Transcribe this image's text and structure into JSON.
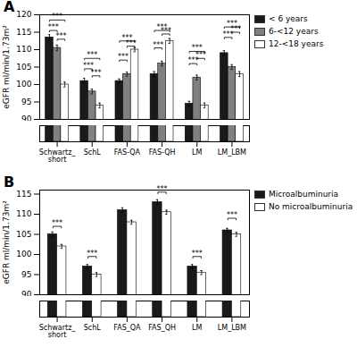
{
  "chart_data": [
    {
      "type": "bar",
      "title": "A",
      "categories": [
        "Schwartz_\nshort",
        "SchL",
        "FAS-QA",
        "FAS-QH",
        "LM",
        "LM_LBM"
      ],
      "series": [
        {
          "name": "< 6 years",
          "color": "#1a1a1a",
          "values": [
            113.5,
            101.0,
            101.0,
            103.0,
            94.5,
            109.0
          ],
          "errors": [
            0.8,
            0.8,
            0.6,
            0.7,
            0.7,
            0.7
          ]
        },
        {
          "name": "6-<12 years",
          "color": "#808080",
          "values": [
            110.5,
            98.0,
            103.0,
            106.0,
            102.0,
            105.0
          ],
          "errors": [
            0.8,
            0.7,
            0.6,
            0.7,
            0.7,
            0.7
          ]
        },
        {
          "name": "12-<18 years",
          "color": "#ffffff",
          "values": [
            100.0,
            94.0,
            110.0,
            112.5,
            94.0,
            103.0
          ],
          "errors": [
            0.7,
            0.7,
            0.6,
            0.7,
            0.7,
            0.7
          ]
        }
      ],
      "ylabel": "eGFR ml/min/1.73m²",
      "ylim": [
        90,
        120
      ],
      "yticks": [
        90,
        95,
        100,
        105,
        110,
        115,
        120
      ],
      "ylim_lower": [
        0,
        8
      ],
      "legend": "upper right",
      "annotations": [
        {
          "text": "***",
          "category": "Schwartz_\nshort",
          "from": "< 6 years",
          "to": "6-<12 years",
          "y": 115.5
        },
        {
          "text": "***",
          "category": "Schwartz_\nshort",
          "from": "6-<12 years",
          "to": "12-<18 years",
          "y": 113.0
        },
        {
          "text": "***",
          "category": "Schwartz_\nshort",
          "from": "< 6 years",
          "to": "12-<18 years",
          "y": 118.5
        },
        {
          "text": "***",
          "category": "SchL",
          "from": "< 6 years",
          "to": "6-<12 years",
          "y": 104.5
        },
        {
          "text": "***",
          "category": "SchL",
          "from": "6-<12 years",
          "to": "12-<18 years",
          "y": 102.5
        },
        {
          "text": "***",
          "category": "SchL",
          "from": "< 6 years",
          "to": "12-<18 years",
          "y": 107.5
        },
        {
          "text": "***",
          "category": "FAS-QA",
          "from": "< 6 years",
          "to": "6-<12 years",
          "y": 107.0
        },
        {
          "text": "***",
          "category": "FAS-QA",
          "from": "6-<12 years",
          "to": "12-<18 years",
          "y": 111.0
        },
        {
          "text": "***",
          "category": "FAS-QA",
          "from": "< 6 years",
          "to": "12-<18 years",
          "y": 112.5
        },
        {
          "text": "***",
          "category": "FAS-QH",
          "from": "< 6 years",
          "to": "6-<12 years",
          "y": 110.5
        },
        {
          "text": "***",
          "category": "FAS-QH",
          "from": "6-<12 years",
          "to": "12-<18 years",
          "y": 114.5
        },
        {
          "text": "***",
          "category": "FAS-QH",
          "from": "< 6 years",
          "to": "12-<18 years",
          "y": 115.5
        },
        {
          "text": "***",
          "category": "LM",
          "from": "< 6 years",
          "to": "6-<12 years",
          "y": 106.0
        },
        {
          "text": "***",
          "category": "LM",
          "from": "6-<12 years",
          "to": "12-<18 years",
          "y": 107.5
        },
        {
          "text": "***",
          "category": "LM",
          "from": "< 6 years",
          "to": "12-<18 years",
          "y": 109.5
        },
        {
          "text": "***",
          "category": "LM_LBM",
          "from": "< 6 years",
          "to": "6-<12 years",
          "y": 113.5
        },
        {
          "text": "***",
          "category": "LM_LBM",
          "from": "6-<12 years",
          "to": "12-<18 years",
          "y": 115.0
        },
        {
          "text": "***",
          "category": "LM_LBM",
          "from": "< 6 years",
          "to": "12-<18 years",
          "y": 116.5
        }
      ]
    },
    {
      "type": "bar",
      "title": "B",
      "categories": [
        "Schwartz_\nshort",
        "SchL",
        "FAS_QA",
        "FAS_QH",
        "LM",
        "LM_LBM"
      ],
      "series": [
        {
          "name": "Microalbuminuria",
          "color": "#1a1a1a",
          "values": [
            105.0,
            97.0,
            111.0,
            113.0,
            97.0,
            106.0
          ],
          "errors": [
            0.6,
            0.5,
            0.6,
            0.6,
            0.5,
            0.5
          ]
        },
        {
          "name": "No microalbuminuria",
          "color": "#ffffff",
          "values": [
            102.0,
            95.0,
            108.0,
            110.5,
            95.5,
            105.0
          ],
          "errors": [
            0.5,
            0.5,
            0.5,
            0.5,
            0.5,
            0.5
          ]
        }
      ],
      "ylabel": "eGFR ml/min/1.73m²",
      "ylim": [
        90,
        116
      ],
      "yticks": [
        90,
        95,
        100,
        105,
        110,
        115
      ],
      "ylim_lower": [
        0,
        8
      ],
      "legend": "upper right",
      "annotations": [
        {
          "text": "***",
          "category": "Schwartz_\nshort",
          "from": "Microalbuminuria",
          "to": "No microalbuminuria",
          "y": 107.0
        },
        {
          "text": "***",
          "category": "SchL",
          "from": "Microalbuminuria",
          "to": "No microalbuminuria",
          "y": 99.5
        },
        {
          "text": "***",
          "category": "FAS_QH",
          "from": "Microalbuminuria",
          "to": "No microalbuminuria",
          "y": 115.5
        },
        {
          "text": "***",
          "category": "LM",
          "from": "Microalbuminuria",
          "to": "No microalbuminuria",
          "y": 99.5
        },
        {
          "text": "***",
          "category": "LM_LBM",
          "from": "Microalbuminuria",
          "to": "No microalbuminuria",
          "y": 109.0
        }
      ]
    }
  ]
}
